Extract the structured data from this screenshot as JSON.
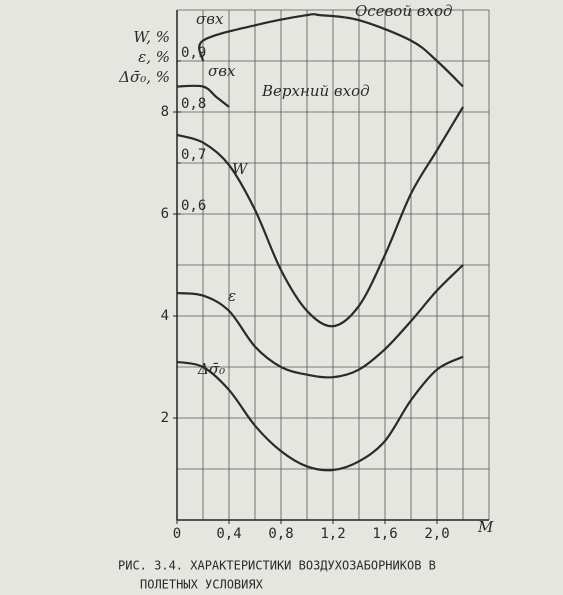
{
  "chart_data": {
    "type": "line",
    "ylabel": [
      "W, %",
      "ε, %",
      "Δσ̄₀, %"
    ],
    "y2label": "σвх",
    "xlabel": "M",
    "annotations": [
      "σвх"
    ],
    "xlim": [
      0,
      2.4
    ],
    "ylim": [
      0,
      10
    ],
    "y2lim": [
      0,
      1.0
    ],
    "xticks": [
      {
        "value": 0,
        "label": "0"
      },
      {
        "value": 0.4,
        "label": "0,4"
      },
      {
        "value": 0.8,
        "label": "0,8"
      },
      {
        "value": 1.2,
        "label": "1,2"
      },
      {
        "value": 1.6,
        "label": "1,6"
      },
      {
        "value": 2.0,
        "label": "2,0"
      }
    ],
    "yticks": [
      2,
      4,
      6,
      8
    ],
    "y2ticks": [
      {
        "value": 0.6,
        "label": "0,6"
      },
      {
        "value": 0.7,
        "label": "0,7"
      },
      {
        "value": 0.8,
        "label": "0,8"
      },
      {
        "value": 0.9,
        "label": "0,9"
      }
    ],
    "xgrid": [
      0.2,
      0.4,
      0.6,
      0.8,
      1.0,
      1.2,
      1.4,
      1.6,
      1.8,
      2.0,
      2.2,
      2.4
    ],
    "ygrid": [
      1,
      2,
      3,
      4,
      5,
      6,
      7,
      8,
      9,
      10
    ],
    "grid": true,
    "series": [
      {
        "name": "Осевой вход",
        "axis": "y2",
        "color": "#2a2a2a",
        "x": [
          0.2,
          0.2,
          0.6,
          1.0,
          1.1,
          1.4,
          1.8,
          2.0,
          2.2
        ],
        "values": [
          0.9,
          0.94,
          0.97,
          0.99,
          0.99,
          0.98,
          0.94,
          0.9,
          0.85
        ]
      },
      {
        "name": "Верхний вход",
        "axis": "y2",
        "color": "#2a2a2a",
        "x": [
          0,
          0.2,
          0.3,
          0.4
        ],
        "values": [
          0.85,
          0.85,
          0.83,
          0.81
        ]
      },
      {
        "name": "W",
        "color": "#2a2a2a",
        "x": [
          0,
          0.2,
          0.4,
          0.6,
          0.8,
          1.0,
          1.2,
          1.4,
          1.6,
          1.8,
          2.0,
          2.2
        ],
        "values": [
          7.55,
          7.4,
          6.96,
          6.08,
          4.9,
          4.1,
          3.8,
          4.2,
          5.2,
          6.4,
          7.25,
          8.1
        ]
      },
      {
        "name": "ε",
        "color": "#2a2a2a",
        "x": [
          0,
          0.2,
          0.4,
          0.6,
          0.8,
          1.0,
          1.2,
          1.4,
          1.6,
          1.8,
          2.0,
          2.2
        ],
        "values": [
          4.45,
          4.4,
          4.1,
          3.4,
          3.0,
          2.85,
          2.8,
          2.95,
          3.35,
          3.9,
          4.5,
          5.0
        ]
      },
      {
        "name": "Δσ̄₀",
        "color": "#2a2a2a",
        "x": [
          0,
          0.2,
          0.4,
          0.6,
          0.8,
          1.0,
          1.2,
          1.4,
          1.6,
          1.8,
          2.0,
          2.2
        ],
        "values": [
          3.1,
          3.0,
          2.55,
          1.85,
          1.35,
          1.05,
          0.98,
          1.15,
          1.55,
          2.35,
          2.95,
          3.2
        ]
      }
    ],
    "caption": [
      "РИС. 3.4. ХАРАКТЕРИСТИКИ ВОЗДУХОЗАБОРНИКОВ В",
      "ПОЛЕТНЫХ УСЛОВИЯХ"
    ]
  }
}
